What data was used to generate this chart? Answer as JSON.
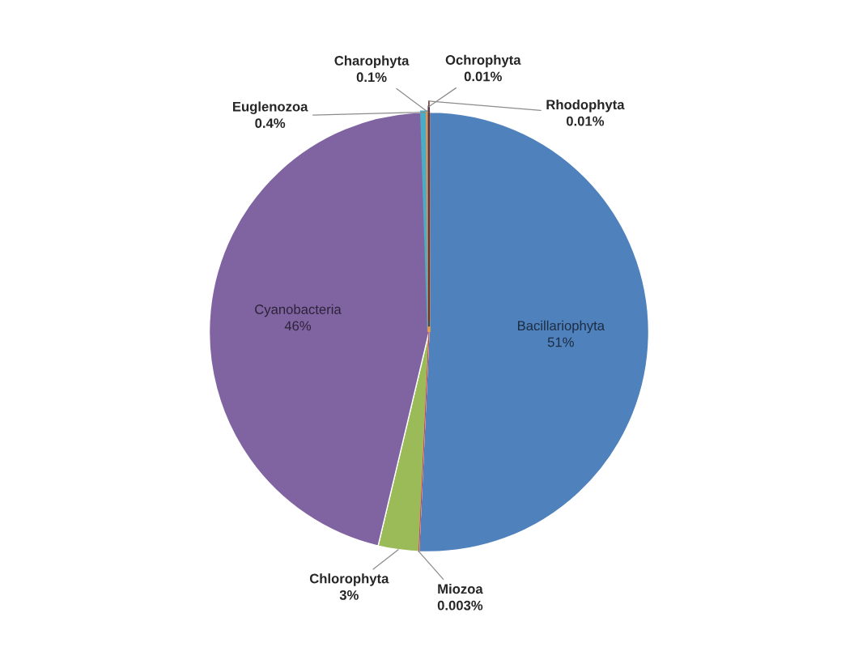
{
  "chart_data": {
    "type": "pie",
    "categories": [
      "Bacillariophyta",
      "Miozoa",
      "Chlorophyta",
      "Cyanobacteria",
      "Euglenozoa",
      "Charophyta",
      "Ochrophyta",
      "Rhodophyta"
    ],
    "values": [
      51,
      0.003,
      3,
      46,
      0.4,
      0.1,
      0.01,
      0.01
    ],
    "value_labels": [
      "51%",
      "0.003%",
      "3%",
      "46%",
      "0.4%",
      "0.1%",
      "0.01%",
      "0.01%"
    ],
    "colors": [
      "#4f81bd",
      "#c0504d",
      "#9bbb59",
      "#8064a2",
      "#4bacc6",
      "#f79646",
      "#2c4d75",
      "#772c2a"
    ]
  }
}
